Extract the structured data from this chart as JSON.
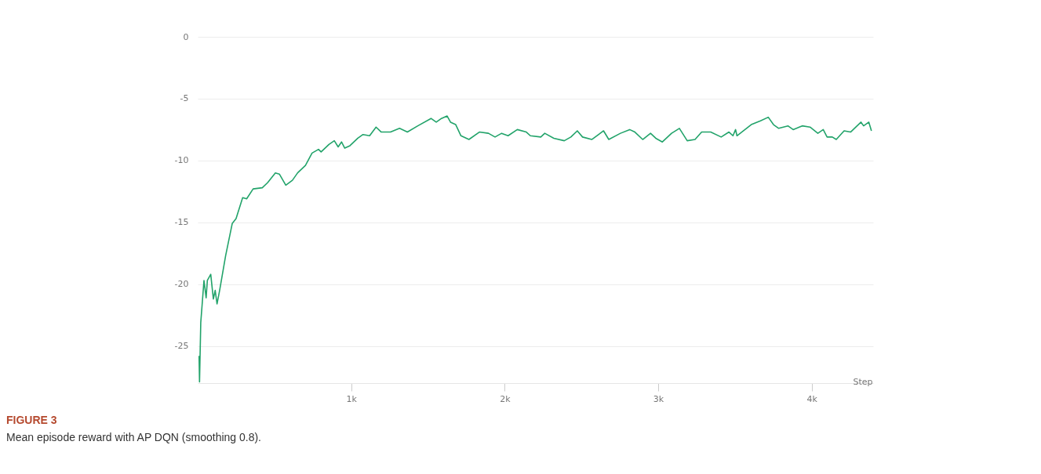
{
  "chart_data": {
    "type": "line",
    "title": "FIGURE 3",
    "annotations": [
      "Mean episode reward with AP DQN (smoothing 0.8)."
    ],
    "xlabel": "Step",
    "grid": "y",
    "xlim": [
      0,
      4400
    ],
    "xticks": [
      {
        "value": 1000,
        "label": "1k"
      },
      {
        "value": 2000,
        "label": "2k"
      },
      {
        "value": 3000,
        "label": "3k"
      },
      {
        "value": 4000,
        "label": "4k"
      }
    ],
    "ylim": [
      -28,
      0
    ],
    "yticks": [
      -25,
      -20,
      -15,
      -10,
      -5,
      0
    ],
    "series": [
      {
        "color": "#22a36a",
        "x": [
          9,
          12,
          20,
          41,
          55,
          63,
          85,
          102,
          114,
          126,
          143,
          182,
          225,
          250,
          293,
          319,
          361,
          421,
          455,
          506,
          532,
          574,
          617,
          651,
          702,
          745,
          787,
          804,
          855,
          890,
          915,
          937,
          958,
          992,
          1043,
          1077,
          1120,
          1162,
          1196,
          1256,
          1315,
          1366,
          1434,
          1520,
          1554,
          1588,
          1625,
          1647,
          1681,
          1715,
          1767,
          1835,
          1894,
          1937,
          1980,
          2022,
          2082,
          2141,
          2167,
          2235,
          2261,
          2320,
          2388,
          2431,
          2473,
          2507,
          2567,
          2644,
          2678,
          2754,
          2814,
          2848,
          2899,
          2950,
          2984,
          3027,
          3087,
          3138,
          3189,
          3240,
          3283,
          3342,
          3410,
          3461,
          3487,
          3504,
          3513,
          3606,
          3666,
          3717,
          3751,
          3785,
          3845,
          3879,
          3938,
          3989,
          4040,
          4075,
          4100,
          4134,
          4160,
          4211,
          4253,
          4321,
          4338,
          4372,
          4389
        ],
        "values": [
          -25.8,
          -27.9,
          -23.1,
          -19.7,
          -21.1,
          -19.7,
          -19.2,
          -21.2,
          -20.5,
          -21.6,
          -20.5,
          -17.7,
          -15.1,
          -14.7,
          -13.0,
          -13.1,
          -12.3,
          -12.2,
          -11.8,
          -11.0,
          -11.1,
          -12.0,
          -11.6,
          -11.0,
          -10.4,
          -9.4,
          -9.1,
          -9.3,
          -8.7,
          -8.4,
          -8.9,
          -8.5,
          -9.0,
          -8.8,
          -8.2,
          -7.9,
          -8.0,
          -7.3,
          -7.7,
          -7.7,
          -7.4,
          -7.7,
          -7.2,
          -6.6,
          -6.9,
          -6.6,
          -6.4,
          -6.9,
          -7.1,
          -8.0,
          -8.3,
          -7.7,
          -7.8,
          -8.1,
          -7.8,
          -8.0,
          -7.5,
          -7.7,
          -8.0,
          -8.1,
          -7.8,
          -8.2,
          -8.4,
          -8.1,
          -7.6,
          -8.1,
          -8.3,
          -7.6,
          -8.3,
          -7.8,
          -7.5,
          -7.7,
          -8.3,
          -7.8,
          -8.2,
          -8.5,
          -7.8,
          -7.4,
          -8.4,
          -8.3,
          -7.7,
          -7.7,
          -8.1,
          -7.7,
          -8.0,
          -7.5,
          -8.0,
          -7.1,
          -6.8,
          -6.5,
          -7.1,
          -7.4,
          -7.2,
          -7.5,
          -7.2,
          -7.3,
          -7.8,
          -7.5,
          -8.1,
          -8.1,
          -8.3,
          -7.6,
          -7.7,
          -6.9,
          -7.2,
          -6.9,
          -7.6
        ]
      }
    ]
  }
}
